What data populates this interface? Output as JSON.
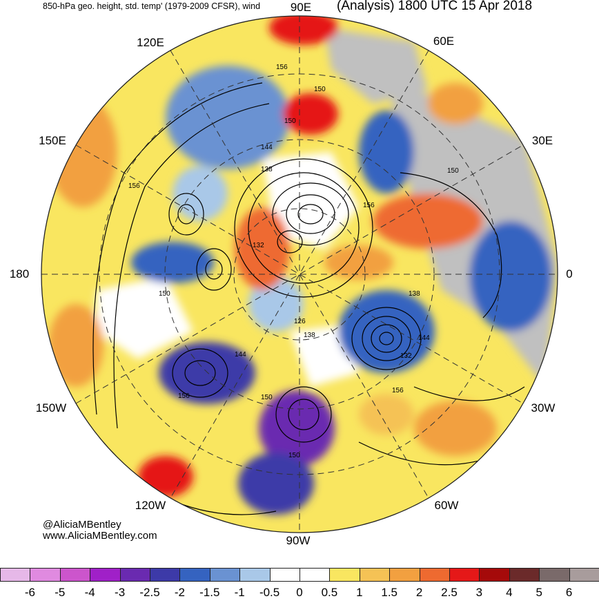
{
  "header": {
    "left_title": "850-hPa geo. height, std. temp' (1979-2009 CFSR), wind",
    "right_title": "(Analysis) 1800 UTC 15 Apr 2018"
  },
  "longitude_labels": {
    "lon_90e": "90E",
    "lon_60e": "60E",
    "lon_120e": "120E",
    "lon_30e": "30E",
    "lon_150e": "150E",
    "lon_0": "0",
    "lon_180": "180",
    "lon_150w": "150W",
    "lon_30w": "30W",
    "lon_120w": "120W",
    "lon_60w": "60W",
    "lon_90w": "90W"
  },
  "contour_labels": [
    "156",
    "150",
    "144",
    "138",
    "150",
    "156",
    "132",
    "150",
    "138",
    "144",
    "132",
    "126",
    "144",
    "150",
    "156",
    "150",
    "156",
    "150",
    "156",
    "150",
    "138"
  ],
  "credit": {
    "handle": "@AliciaMBentley",
    "website": "www.AliciaMBentley.com"
  },
  "colorbar": {
    "ticks": [
      "-6",
      "-5",
      "-4",
      "-3",
      "-2.5",
      "-2",
      "-1.5",
      "-1",
      "-0.5",
      "0",
      "0.5",
      "1",
      "1.5",
      "2",
      "2.5",
      "3",
      "4",
      "5",
      "6"
    ],
    "colors": [
      "#e6b8e8",
      "#e08ae0",
      "#cc55cc",
      "#a020c8",
      "#6a2ab0",
      "#3d3aa8",
      "#3563c0",
      "#6a92d2",
      "#a9c8e8",
      "#ffffff",
      "#ffffff",
      "#f9e660",
      "#f5c255",
      "#f2a040",
      "#ee6a30",
      "#e51818",
      "#a50a0a",
      "#6b2a2a",
      "#7a6a6a",
      "#a89c9c"
    ]
  },
  "map_colors": {
    "land_gray": "#c0c0c0",
    "warm_yellow": "#f9e660",
    "warm_orange": "#f2a040",
    "warm_red": "#e51818",
    "cool_blue": "#6a92d2",
    "cool_purple": "#6a2ab0"
  }
}
